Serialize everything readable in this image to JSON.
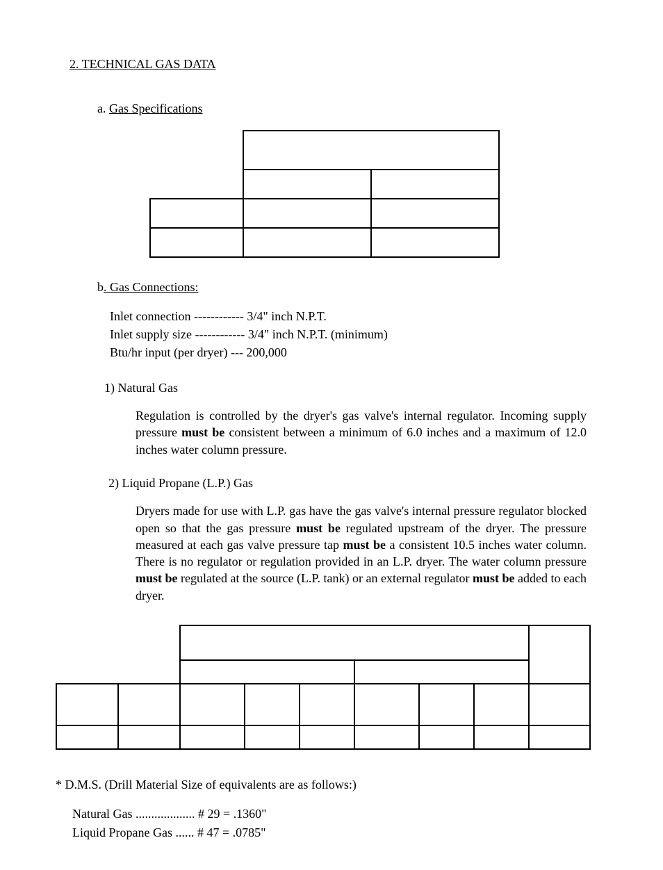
{
  "heading": "2. TECHNICAL GAS DATA",
  "sectionA_prefix": "a. ",
  "sectionA_title": "Gas Specifications",
  "sectionB_prefix": "b",
  "sectionB_title": ". Gas Connections:",
  "conn": {
    "l1": "Inlet connection ------------ 3/4\" inch N.P.T.",
    "l2": "Inlet supply size ------------ 3/4\" inch N.P.T. (minimum)",
    "l3": "Btu/hr input (per dryer) --- 200,000"
  },
  "ng_heading": "1) Natural Gas",
  "ng_para_a": "Regulation is controlled by the dryer's gas valve's internal regulator. Incoming supply pressure ",
  "ng_para_b": "must be",
  "ng_para_c": " consistent between a minimum of 6.0 inches and a maximum of 12.0 inches water column pressure.",
  "lp_heading": "2) Liquid Propane (L.P.) Gas",
  "lp_a": "Dryers made for use with L.P. gas have the gas valve's internal pressure regulator blocked open so that the gas pressure ",
  "lp_b": "must be",
  "lp_c": " regulated upstream of the dryer. The pressure measured at each gas valve pressure tap ",
  "lp_d": "must be",
  "lp_e": " a consistent 10.5 inches water column. There is no regulator or regulation provided in an L.P. dryer. The water column pressure ",
  "lp_f": "must be",
  "lp_g": " regulated at the source (L.P. tank) or an external regulator ",
  "lp_h": "must be",
  "lp_i": " added to each dryer.",
  "dms_line": "* D.M.S. (Drill Material Size of equivalents are as follows:)",
  "dms_ng": "Natural Gas ................... # 29 = .1360\"",
  "dms_lp": "Liquid Propane Gas ...... # 47 = .0785\""
}
